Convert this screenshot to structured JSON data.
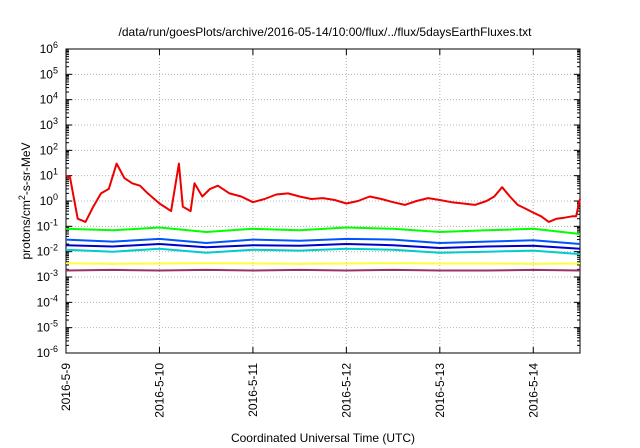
{
  "chart_data": {
    "type": "line",
    "title": "/data/run/goesPlots/archive/2016-05-14/10:00/flux/../flux/5daysEarthFluxes.txt",
    "xlabel": "Coordinated Universal Time (UTC)",
    "ylabel": "protons/cm2-s-sr-MeV",
    "ylabel_parts": {
      "pre": "protons/cm",
      "sup": "2",
      "post": "-s-sr-MeV"
    },
    "y_scale": "log",
    "ylim": [
      1e-06,
      1000000.0
    ],
    "xlim": [
      "2016-05-09T00:00",
      "2016-05-14T12:00"
    ],
    "grid": true,
    "x_ticks": [
      {
        "label": "2016-5-9",
        "value": "2016-05-09T00:00"
      },
      {
        "label": "2016-5-10",
        "value": "2016-05-10T00:00"
      },
      {
        "label": "2016-5-11",
        "value": "2016-05-11T00:00"
      },
      {
        "label": "2016-5-12",
        "value": "2016-05-12T00:00"
      },
      {
        "label": "2016-5-13",
        "value": "2016-05-13T00:00"
      },
      {
        "label": "2016-5-14",
        "value": "2016-05-14T00:00"
      }
    ],
    "y_ticks": [
      {
        "base": "10",
        "exp": "6",
        "value": 1000000.0
      },
      {
        "base": "10",
        "exp": "5",
        "value": 100000.0
      },
      {
        "base": "10",
        "exp": "4",
        "value": 10000.0
      },
      {
        "base": "10",
        "exp": "3",
        "value": 1000.0
      },
      {
        "base": "10",
        "exp": "2",
        "value": 100.0
      },
      {
        "base": "10",
        "exp": "1",
        "value": 10.0
      },
      {
        "base": "10",
        "exp": "0",
        "value": 1
      },
      {
        "base": "10",
        "exp": "-1",
        "value": 0.1
      },
      {
        "base": "10",
        "exp": "-2",
        "value": 0.01
      },
      {
        "base": "10",
        "exp": "-3",
        "value": 0.001
      },
      {
        "base": "10",
        "exp": "-4",
        "value": 0.0001
      },
      {
        "base": "10",
        "exp": "-5",
        "value": 1e-05
      },
      {
        "base": "10",
        "exp": "-6",
        "value": 1e-06
      }
    ],
    "series": [
      {
        "color": "#ffff33",
        "x": [
          "2016-05-09T00:00",
          "2016-05-09T12:00",
          "2016-05-10T00:00",
          "2016-05-10T12:00",
          "2016-05-11T00:00",
          "2016-05-11T12:00",
          "2016-05-12T00:00",
          "2016-05-12T12:00",
          "2016-05-13T00:00",
          "2016-05-13T12:00",
          "2016-05-14T00:00",
          "2016-05-14T12:00"
        ],
        "y": [
          0.0035,
          0.0033,
          0.0034,
          0.0035,
          0.0034,
          0.0033,
          0.0034,
          0.0035,
          0.0034,
          0.0034,
          0.0033,
          0.0034
        ]
      },
      {
        "color": "#00ff00",
        "x": [
          "2016-05-09T00:00",
          "2016-05-09T12:00",
          "2016-05-10T00:00",
          "2016-05-10T12:00",
          "2016-05-11T00:00",
          "2016-05-11T12:00",
          "2016-05-12T00:00",
          "2016-05-12T12:00",
          "2016-05-13T00:00",
          "2016-05-13T12:00",
          "2016-05-14T00:00",
          "2016-05-14T12:00"
        ],
        "y": [
          0.08,
          0.07,
          0.09,
          0.06,
          0.08,
          0.07,
          0.09,
          0.08,
          0.06,
          0.07,
          0.08,
          0.05
        ]
      },
      {
        "color": "#00cccc",
        "x": [
          "2016-05-09T00:00",
          "2016-05-09T12:00",
          "2016-05-10T00:00",
          "2016-05-10T12:00",
          "2016-05-11T00:00",
          "2016-05-11T12:00",
          "2016-05-12T00:00",
          "2016-05-12T12:00",
          "2016-05-13T00:00",
          "2016-05-13T12:00",
          "2016-05-14T00:00",
          "2016-05-14T12:00"
        ],
        "y": [
          0.012,
          0.01,
          0.013,
          0.009,
          0.012,
          0.011,
          0.013,
          0.012,
          0.009,
          0.01,
          0.011,
          0.008
        ]
      },
      {
        "color": "#0055ff",
        "x": [
          "2016-05-09T00:00",
          "2016-05-09T12:00",
          "2016-05-10T00:00",
          "2016-05-10T12:00",
          "2016-05-11T00:00",
          "2016-05-11T12:00",
          "2016-05-12T00:00",
          "2016-05-12T12:00",
          "2016-05-13T00:00",
          "2016-05-13T12:00",
          "2016-05-14T00:00",
          "2016-05-14T12:00"
        ],
        "y": [
          0.03,
          0.025,
          0.032,
          0.022,
          0.03,
          0.027,
          0.032,
          0.03,
          0.022,
          0.025,
          0.028,
          0.02
        ]
      },
      {
        "color": "#0000cc",
        "x": [
          "2016-05-09T00:00",
          "2016-05-09T12:00",
          "2016-05-10T00:00",
          "2016-05-10T12:00",
          "2016-05-11T00:00",
          "2016-05-11T12:00",
          "2016-05-12T00:00",
          "2016-05-12T12:00",
          "2016-05-13T00:00",
          "2016-05-13T12:00",
          "2016-05-14T00:00",
          "2016-05-14T12:00"
        ],
        "y": [
          0.018,
          0.016,
          0.02,
          0.015,
          0.018,
          0.017,
          0.02,
          0.018,
          0.014,
          0.016,
          0.017,
          0.013
        ]
      },
      {
        "color": "#993366",
        "x": [
          "2016-05-09T00:00",
          "2016-05-09T12:00",
          "2016-05-10T00:00",
          "2016-05-10T12:00",
          "2016-05-11T00:00",
          "2016-05-11T12:00",
          "2016-05-12T00:00",
          "2016-05-12T12:00",
          "2016-05-13T00:00",
          "2016-05-13T12:00",
          "2016-05-14T00:00",
          "2016-05-14T12:00"
        ],
        "y": [
          0.0018,
          0.0019,
          0.0018,
          0.0019,
          0.0018,
          0.0019,
          0.0018,
          0.0019,
          0.0018,
          0.0018,
          0.0019,
          0.0018
        ]
      },
      {
        "color": "#ee0000",
        "x": [
          "2016-05-09T00:00",
          "2016-05-09T01:00",
          "2016-05-09T03:00",
          "2016-05-09T05:00",
          "2016-05-09T07:00",
          "2016-05-09T09:00",
          "2016-05-09T11:00",
          "2016-05-09T13:00",
          "2016-05-09T15:00",
          "2016-05-09T17:00",
          "2016-05-09T19:00",
          "2016-05-09T21:00",
          "2016-05-10T00:00",
          "2016-05-10T03:00",
          "2016-05-10T05:00",
          "2016-05-10T06:00",
          "2016-05-10T08:00",
          "2016-05-10T09:00",
          "2016-05-10T11:00",
          "2016-05-10T13:00",
          "2016-05-10T15:00",
          "2016-05-10T18:00",
          "2016-05-10T21:00",
          "2016-05-11T00:00",
          "2016-05-11T03:00",
          "2016-05-11T06:00",
          "2016-05-11T09:00",
          "2016-05-11T12:00",
          "2016-05-11T15:00",
          "2016-05-11T18:00",
          "2016-05-11T21:00",
          "2016-05-12T00:00",
          "2016-05-12T03:00",
          "2016-05-12T06:00",
          "2016-05-12T09:00",
          "2016-05-12T12:00",
          "2016-05-12T15:00",
          "2016-05-12T18:00",
          "2016-05-12T21:00",
          "2016-05-13T00:00",
          "2016-05-13T03:00",
          "2016-05-13T06:00",
          "2016-05-13T09:00",
          "2016-05-13T12:00",
          "2016-05-13T14:00",
          "2016-05-13T16:00",
          "2016-05-13T18:00",
          "2016-05-13T20:00",
          "2016-05-13T22:00",
          "2016-05-14T00:00",
          "2016-05-14T02:00",
          "2016-05-14T04:00",
          "2016-05-14T06:00",
          "2016-05-14T08:00",
          "2016-05-14T10:00",
          "2016-05-14T11:00",
          "2016-05-14T12:00"
        ],
        "y": [
          10,
          9,
          0.2,
          0.15,
          0.6,
          2,
          3,
          30,
          8,
          5,
          4,
          2,
          0.8,
          0.4,
          30,
          0.6,
          0.4,
          5,
          1.5,
          3,
          4,
          2,
          1.5,
          0.9,
          1.2,
          1.8,
          2,
          1.5,
          1.2,
          1.3,
          1.1,
          0.8,
          1,
          1.5,
          1.2,
          0.9,
          0.7,
          1,
          1.3,
          1.1,
          0.9,
          0.8,
          0.7,
          1,
          1.5,
          3.5,
          1.5,
          0.7,
          0.5,
          0.35,
          0.25,
          0.15,
          0.2,
          0.22,
          0.25,
          0.25,
          1.2
        ]
      }
    ]
  }
}
